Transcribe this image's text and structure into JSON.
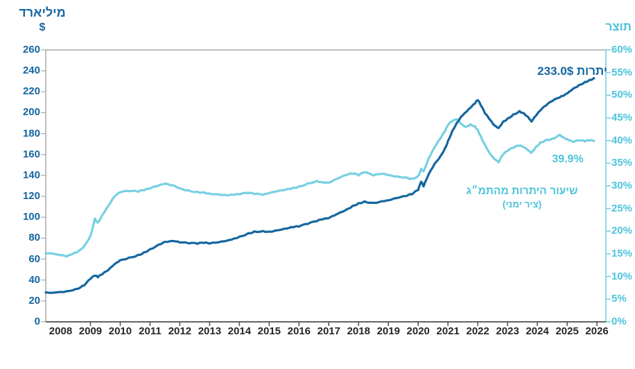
{
  "colors": {
    "dark_blue": "#15669f",
    "light_blue_line": "#76d0e2",
    "light_blue_text": "#4cc3db",
    "axis_gray": "#a9a9a9",
    "bottom_axis": "#4d4d4d",
    "year_label": "#262626"
  },
  "left_axis": {
    "title_line1": "מיליארד",
    "title_line2": "$",
    "tick_labels": [
      "260",
      "240",
      "220",
      "200",
      "180",
      "160",
      "140",
      "120",
      "100",
      "80",
      "60",
      "40",
      "20",
      "0"
    ],
    "min": 0,
    "max": 260,
    "step": 20
  },
  "right_axis": {
    "title": "תוצר",
    "tick_labels": [
      "60%",
      "55%",
      "50%",
      "45%",
      "40%",
      "35%",
      "30%",
      "25%",
      "20%",
      "15%",
      "10%",
      "5%",
      "0%"
    ],
    "min": 0,
    "max": 60,
    "step": 5
  },
  "x_axis": {
    "years": [
      "2008",
      "2009",
      "2010",
      "2011",
      "2012",
      "2013",
      "2014",
      "2015",
      "2016",
      "2017",
      "2018",
      "2019",
      "2020",
      "2021",
      "2022",
      "2023",
      "2024",
      "2025",
      "2026"
    ]
  },
  "annotations": {
    "reserves_label": "יתרות 233.0$",
    "ratio_value": "39.9%",
    "ratio_name_line1": "שיעור היתרות מהתמ״ג",
    "ratio_name_line2": "(ציר ימני)"
  },
  "chart_data": {
    "type": "line",
    "x_unit": "decimal_year",
    "x_range": [
      2007.5,
      2026.3
    ],
    "left_ylim": [
      0,
      260
    ],
    "right_ylim": [
      0,
      60
    ],
    "grid": false,
    "series": [
      {
        "name": "יתרות (מיליארד $)",
        "axis": "left",
        "end_value_label": "233.0$",
        "points": [
          [
            2007.5,
            28.2
          ],
          [
            2008.0,
            28.6
          ],
          [
            2008.3,
            29.6
          ],
          [
            2008.6,
            31.8
          ],
          [
            2008.8,
            35.0
          ],
          [
            2009.0,
            41.0
          ],
          [
            2009.15,
            44.0
          ],
          [
            2009.25,
            42.6
          ],
          [
            2009.4,
            45.5
          ],
          [
            2009.6,
            49.5
          ],
          [
            2009.8,
            55.0
          ],
          [
            2010.0,
            59.0
          ],
          [
            2010.3,
            61.5
          ],
          [
            2010.6,
            64.0
          ],
          [
            2010.8,
            66.5
          ],
          [
            2011.0,
            69.5
          ],
          [
            2011.3,
            74.0
          ],
          [
            2011.5,
            76.5
          ],
          [
            2011.8,
            77.2
          ],
          [
            2012.0,
            75.8
          ],
          [
            2012.3,
            75.0
          ],
          [
            2012.6,
            74.6
          ],
          [
            2012.8,
            75.4
          ],
          [
            2013.0,
            74.8
          ],
          [
            2013.3,
            76.0
          ],
          [
            2013.6,
            77.8
          ],
          [
            2013.8,
            79.5
          ],
          [
            2014.0,
            81.5
          ],
          [
            2014.3,
            84.8
          ],
          [
            2014.5,
            86.5
          ],
          [
            2014.8,
            86.8
          ],
          [
            2015.0,
            86.2
          ],
          [
            2015.3,
            87.6
          ],
          [
            2015.6,
            89.2
          ],
          [
            2015.8,
            90.4
          ],
          [
            2016.0,
            91.0
          ],
          [
            2016.3,
            93.6
          ],
          [
            2016.6,
            96.2
          ],
          [
            2016.8,
            98.0
          ],
          [
            2017.0,
            99.2
          ],
          [
            2017.3,
            103.5
          ],
          [
            2017.6,
            107.5
          ],
          [
            2017.8,
            111.0
          ],
          [
            2018.0,
            113.6
          ],
          [
            2018.2,
            115.2
          ],
          [
            2018.5,
            113.8
          ],
          [
            2018.8,
            115.4
          ],
          [
            2019.0,
            116.2
          ],
          [
            2019.3,
            118.4
          ],
          [
            2019.6,
            120.2
          ],
          [
            2019.8,
            122.0
          ],
          [
            2020.0,
            126.0
          ],
          [
            2020.1,
            134.0
          ],
          [
            2020.18,
            129.5
          ],
          [
            2020.35,
            141.0
          ],
          [
            2020.55,
            151.0
          ],
          [
            2020.75,
            158.5
          ],
          [
            2020.9,
            166.0
          ],
          [
            2021.0,
            173.0
          ],
          [
            2021.15,
            183.0
          ],
          [
            2021.3,
            190.5
          ],
          [
            2021.45,
            196.5
          ],
          [
            2021.6,
            200.5
          ],
          [
            2021.75,
            204.5
          ],
          [
            2021.9,
            208.5
          ],
          [
            2022.0,
            212.0
          ],
          [
            2022.1,
            207.0
          ],
          [
            2022.25,
            199.0
          ],
          [
            2022.4,
            193.5
          ],
          [
            2022.55,
            188.0
          ],
          [
            2022.7,
            185.3
          ],
          [
            2022.85,
            191.5
          ],
          [
            2023.0,
            194.5
          ],
          [
            2023.2,
            198.5
          ],
          [
            2023.4,
            201.5
          ],
          [
            2023.55,
            199.5
          ],
          [
            2023.7,
            195.5
          ],
          [
            2023.8,
            191.5
          ],
          [
            2023.95,
            197.0
          ],
          [
            2024.1,
            202.0
          ],
          [
            2024.3,
            207.0
          ],
          [
            2024.5,
            211.0
          ],
          [
            2024.75,
            214.5
          ],
          [
            2024.9,
            216.5
          ],
          [
            2025.05,
            219.5
          ],
          [
            2025.2,
            223.0
          ],
          [
            2025.4,
            226.5
          ],
          [
            2025.6,
            229.5
          ],
          [
            2025.75,
            231.5
          ],
          [
            2025.9,
            233.0
          ]
        ]
      },
      {
        "name": "שיעור היתרות מהתמ״ג (ציר ימני)",
        "axis": "right",
        "end_value_label": "39.9%",
        "points": [
          [
            2007.5,
            15.1
          ],
          [
            2008.0,
            14.7
          ],
          [
            2008.2,
            14.4
          ],
          [
            2008.4,
            15.0
          ],
          [
            2008.6,
            15.6
          ],
          [
            2008.8,
            16.8
          ],
          [
            2009.0,
            19.0
          ],
          [
            2009.15,
            22.8
          ],
          [
            2009.25,
            21.9
          ],
          [
            2009.4,
            23.6
          ],
          [
            2009.6,
            25.6
          ],
          [
            2009.8,
            27.6
          ],
          [
            2010.0,
            28.6
          ],
          [
            2010.3,
            28.8
          ],
          [
            2010.6,
            28.7
          ],
          [
            2010.8,
            29.0
          ],
          [
            2011.0,
            29.4
          ],
          [
            2011.3,
            30.1
          ],
          [
            2011.5,
            30.5
          ],
          [
            2011.8,
            30.1
          ],
          [
            2012.0,
            29.5
          ],
          [
            2012.3,
            29.0
          ],
          [
            2012.6,
            28.7
          ],
          [
            2012.8,
            28.6
          ],
          [
            2013.0,
            28.3
          ],
          [
            2013.3,
            28.1
          ],
          [
            2013.6,
            27.9
          ],
          [
            2013.8,
            28.0
          ],
          [
            2014.0,
            28.1
          ],
          [
            2014.3,
            28.4
          ],
          [
            2014.5,
            28.2
          ],
          [
            2014.8,
            28.0
          ],
          [
            2015.0,
            28.4
          ],
          [
            2015.3,
            28.9
          ],
          [
            2015.6,
            29.3
          ],
          [
            2015.8,
            29.6
          ],
          [
            2016.0,
            29.9
          ],
          [
            2016.3,
            30.6
          ],
          [
            2016.6,
            31.1
          ],
          [
            2016.8,
            30.8
          ],
          [
            2017.0,
            30.7
          ],
          [
            2017.3,
            31.6
          ],
          [
            2017.6,
            32.4
          ],
          [
            2017.8,
            32.7
          ],
          [
            2018.0,
            32.3
          ],
          [
            2018.2,
            33.0
          ],
          [
            2018.5,
            32.3
          ],
          [
            2018.8,
            32.7
          ],
          [
            2019.0,
            32.4
          ],
          [
            2019.3,
            32.1
          ],
          [
            2019.6,
            31.9
          ],
          [
            2019.8,
            31.6
          ],
          [
            2020.0,
            32.2
          ],
          [
            2020.1,
            33.8
          ],
          [
            2020.18,
            33.2
          ],
          [
            2020.35,
            36.0
          ],
          [
            2020.55,
            38.5
          ],
          [
            2020.75,
            40.5
          ],
          [
            2020.9,
            42.0
          ],
          [
            2021.0,
            43.4
          ],
          [
            2021.15,
            44.3
          ],
          [
            2021.3,
            44.7
          ],
          [
            2021.45,
            43.6
          ],
          [
            2021.6,
            43.0
          ],
          [
            2021.75,
            43.6
          ],
          [
            2021.9,
            43.2
          ],
          [
            2022.0,
            42.4
          ],
          [
            2022.1,
            41.0
          ],
          [
            2022.25,
            39.0
          ],
          [
            2022.4,
            37.2
          ],
          [
            2022.55,
            36.0
          ],
          [
            2022.7,
            35.2
          ],
          [
            2022.85,
            36.9
          ],
          [
            2023.0,
            37.7
          ],
          [
            2023.2,
            38.4
          ],
          [
            2023.4,
            38.9
          ],
          [
            2023.55,
            38.5
          ],
          [
            2023.7,
            37.8
          ],
          [
            2023.8,
            37.3
          ],
          [
            2023.95,
            38.6
          ],
          [
            2024.1,
            39.6
          ],
          [
            2024.3,
            40.2
          ],
          [
            2024.5,
            40.4
          ],
          [
            2024.75,
            41.3
          ],
          [
            2024.9,
            40.6
          ],
          [
            2025.05,
            40.1
          ],
          [
            2025.2,
            39.7
          ],
          [
            2025.4,
            40.0
          ],
          [
            2025.6,
            39.8
          ],
          [
            2025.75,
            40.0
          ],
          [
            2025.9,
            39.9
          ]
        ]
      }
    ]
  }
}
